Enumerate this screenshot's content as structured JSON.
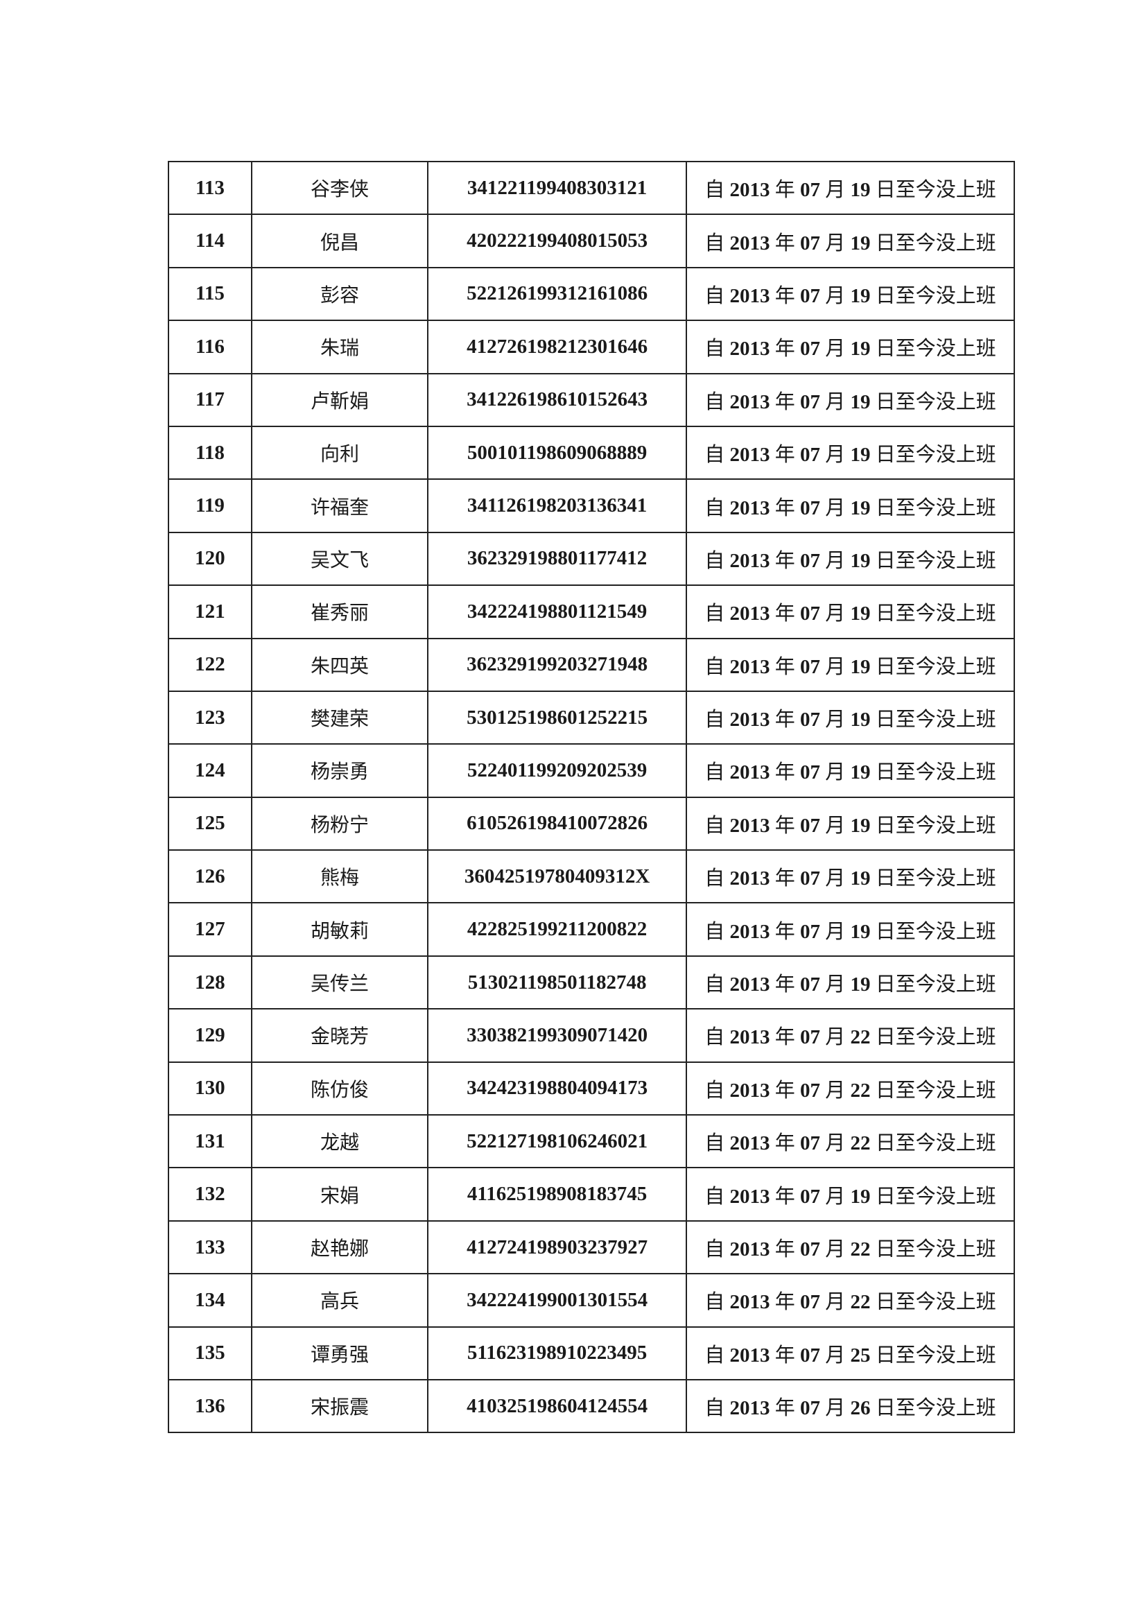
{
  "rows": [
    {
      "no": "113",
      "name": "谷李侠",
      "id": "341221199408303121",
      "status": "自 2013 年 07 月 19 日至今没上班"
    },
    {
      "no": "114",
      "name": "倪昌",
      "id": "420222199408015053",
      "status": "自 2013 年 07 月 19 日至今没上班"
    },
    {
      "no": "115",
      "name": "彭容",
      "id": "522126199312161086",
      "status": "自 2013 年 07 月 19 日至今没上班"
    },
    {
      "no": "116",
      "name": "朱瑞",
      "id": "412726198212301646",
      "status": "自 2013 年 07 月 19 日至今没上班"
    },
    {
      "no": "117",
      "name": "卢靳娟",
      "id": "341226198610152643",
      "status": "自 2013 年 07 月 19 日至今没上班"
    },
    {
      "no": "118",
      "name": "向利",
      "id": "500101198609068889",
      "status": "自 2013 年 07 月 19 日至今没上班"
    },
    {
      "no": "119",
      "name": "许福奎",
      "id": "341126198203136341",
      "status": "自 2013 年 07 月 19 日至今没上班"
    },
    {
      "no": "120",
      "name": "吴文飞",
      "id": "362329198801177412",
      "status": "自 2013 年 07 月 19 日至今没上班"
    },
    {
      "no": "121",
      "name": "崔秀丽",
      "id": "342224198801121549",
      "status": "自 2013 年 07 月 19 日至今没上班"
    },
    {
      "no": "122",
      "name": "朱四英",
      "id": "362329199203271948",
      "status": "自 2013 年 07 月 19 日至今没上班"
    },
    {
      "no": "123",
      "name": "樊建荣",
      "id": "530125198601252215",
      "status": "自 2013 年 07 月 19 日至今没上班"
    },
    {
      "no": "124",
      "name": "杨崇勇",
      "id": "522401199209202539",
      "status": "自 2013 年 07 月 19 日至今没上班"
    },
    {
      "no": "125",
      "name": "杨粉宁",
      "id": "610526198410072826",
      "status": "自 2013 年 07 月 19 日至今没上班"
    },
    {
      "no": "126",
      "name": "熊梅",
      "id": "36042519780409312X",
      "status": "自 2013 年 07 月 19 日至今没上班"
    },
    {
      "no": "127",
      "name": "胡敏莉",
      "id": "422825199211200822",
      "status": "自 2013 年 07 月 19 日至今没上班"
    },
    {
      "no": "128",
      "name": "吴传兰",
      "id": "513021198501182748",
      "status": "自 2013 年 07 月 19 日至今没上班"
    },
    {
      "no": "129",
      "name": "金晓芳",
      "id": "330382199309071420",
      "status": "自 2013 年 07 月 22 日至今没上班"
    },
    {
      "no": "130",
      "name": "陈仿俊",
      "id": "342423198804094173",
      "status": "自 2013 年 07 月 22 日至今没上班"
    },
    {
      "no": "131",
      "name": "龙越",
      "id": "522127198106246021",
      "status": "自 2013 年 07 月 22 日至今没上班"
    },
    {
      "no": "132",
      "name": "宋娟",
      "id": "411625198908183745",
      "status": "自 2013 年 07 月 19 日至今没上班"
    },
    {
      "no": "133",
      "name": "赵艳娜",
      "id": "412724198903237927",
      "status": "自 2013 年 07 月 22 日至今没上班"
    },
    {
      "no": "134",
      "name": "高兵",
      "id": "342224199001301554",
      "status": "自 2013 年 07 月 22 日至今没上班"
    },
    {
      "no": "135",
      "name": "谭勇强",
      "id": "511623198910223495",
      "status": "自 2013 年 07 月 25 日至今没上班"
    },
    {
      "no": "136",
      "name": "宋振震",
      "id": "410325198604124554",
      "status": "自 2013 年 07 月 26 日至今没上班"
    }
  ]
}
